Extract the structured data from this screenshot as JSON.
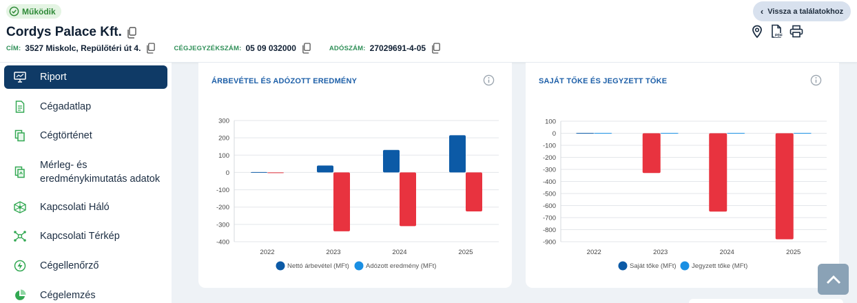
{
  "status": {
    "label": "Működik",
    "color": "#2f8a38"
  },
  "company": {
    "name": "Cordys Palace Kft."
  },
  "meta": {
    "address_label": "CÍM:",
    "address": "3527 Miskolc, Repülőtéri út 4.",
    "regno_label": "CÉGJEGYZÉKSZÁM:",
    "regno": "05 09 032000",
    "tax_label": "ADÓSZÁM:",
    "tax": "27029691-4-05"
  },
  "back_button": {
    "label": "Vissza a találatokhoz"
  },
  "toolbar": {
    "icons": [
      "map-pin-icon",
      "pdf-icon",
      "print-icon"
    ]
  },
  "sidebar": {
    "items": [
      {
        "label": "Riport",
        "icon": "monitor-icon",
        "active": true
      },
      {
        "label": "Cégadatlap",
        "icon": "document-icon"
      },
      {
        "label": "Cégtörténet",
        "icon": "copy-docs-icon"
      },
      {
        "label_line1": "Mérleg- és",
        "label_line2": "eredménykimutatás adatok",
        "icon": "balance-doc-icon"
      },
      {
        "label": "Kapcsolati Háló",
        "icon": "network-icon"
      },
      {
        "label": "Kapcsolati Térkép",
        "icon": "graph-map-icon"
      },
      {
        "label": "Cégellenőrző",
        "icon": "bolt-check-icon"
      },
      {
        "label": "Cégelemzés",
        "icon": "pie-chart-icon"
      }
    ]
  },
  "colors": {
    "dark_blue": "#0c5aa6",
    "light_blue": "#1a8fe3",
    "red": "#e8333f",
    "sidebar_active": "#0f3a66",
    "accent_green": "#2e8f57"
  },
  "chart_data": [
    {
      "type": "bar",
      "title": "ÁRBEVÉTEL ÉS ADÓZOTT EREDMÉNY",
      "categories": [
        "2022",
        "2023",
        "2024",
        "2025"
      ],
      "series": [
        {
          "name": "Nettó árbevétel (MFt)",
          "values": [
            2,
            40,
            130,
            215
          ],
          "color": "#0c5aa6"
        },
        {
          "name": "Adózott eredmény (MFt)",
          "values": [
            -2,
            -340,
            -310,
            -225
          ],
          "color": "#e8333f",
          "legend_color": "#1a8fe3"
        }
      ],
      "ylim": [
        -400,
        300
      ],
      "yticks": [
        300,
        200,
        100,
        0,
        -100,
        -200,
        -300,
        -400
      ],
      "grid": true,
      "legend": "bottom"
    },
    {
      "type": "bar",
      "title": "SAJÁT TŐKE ÉS JEGYZETT TŐKE",
      "categories": [
        "2022",
        "2023",
        "2024",
        "2025"
      ],
      "series": [
        {
          "name": "Saját tőke (MFt)",
          "values": [
            3,
            -330,
            -650,
            -880
          ],
          "color": "#e8333f",
          "positive_color": "#0c5aa6"
        },
        {
          "name": "Jegyzett tőke (MFt)",
          "values": [
            3,
            3,
            3,
            3
          ],
          "color": "#1a8fe3"
        }
      ],
      "ylim": [
        -900,
        100
      ],
      "yticks": [
        100,
        0,
        -100,
        -200,
        -300,
        -400,
        -500,
        -600,
        -700,
        -800,
        -900
      ],
      "grid": true,
      "legend": "bottom"
    }
  ]
}
